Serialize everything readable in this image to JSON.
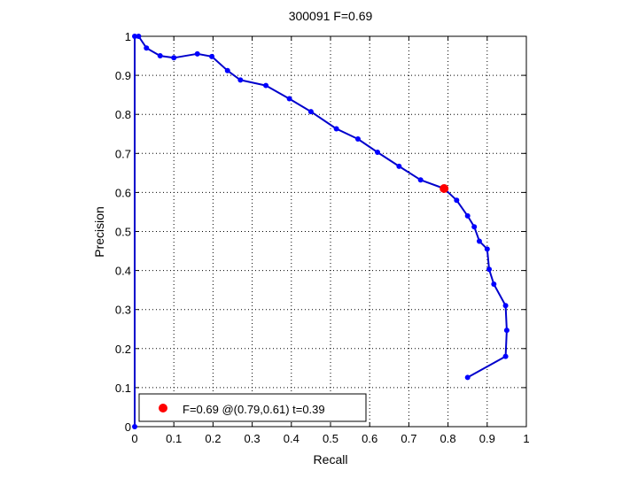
{
  "chart_data": {
    "type": "line",
    "title": "300091 F=0.69",
    "xlabel": "Recall",
    "ylabel": "Precision",
    "xlim": [
      0,
      1
    ],
    "ylim": [
      0,
      1
    ],
    "xticks": [
      "0",
      "0.1",
      "0.2",
      "0.3",
      "0.4",
      "0.5",
      "0.6",
      "0.7",
      "0.8",
      "0.9",
      "1"
    ],
    "yticks": [
      "0",
      "0.1",
      "0.2",
      "0.3",
      "0.4",
      "0.5",
      "0.6",
      "0.7",
      "0.8",
      "0.9",
      "1"
    ],
    "grid": true,
    "legend_position": "bottom-left",
    "colors": {
      "curve": "#0000cc",
      "marker": "#0000ff",
      "best_point": "#ff0000"
    },
    "series": [
      {
        "x": [
          0.0,
          0.0,
          0.01,
          0.03,
          0.065,
          0.1,
          0.16,
          0.197,
          0.237,
          0.27,
          0.335,
          0.395,
          0.45,
          0.515,
          0.57,
          0.62,
          0.675,
          0.73,
          0.79,
          0.822,
          0.85,
          0.867,
          0.88,
          0.9,
          0.905,
          0.917,
          0.947,
          0.95,
          0.947,
          0.85
        ],
        "y": [
          0.0,
          1.0,
          1.0,
          0.97,
          0.95,
          0.945,
          0.955,
          0.948,
          0.912,
          0.888,
          0.874,
          0.84,
          0.807,
          0.763,
          0.737,
          0.703,
          0.667,
          0.632,
          0.61,
          0.58,
          0.54,
          0.512,
          0.475,
          0.455,
          0.403,
          0.365,
          0.31,
          0.247,
          0.18,
          0.126
        ]
      }
    ],
    "best_point": {
      "x": 0.79,
      "y": 0.61
    },
    "legend": {
      "label": "F=0.69 @(0.79,0.61) t=0.39"
    }
  }
}
